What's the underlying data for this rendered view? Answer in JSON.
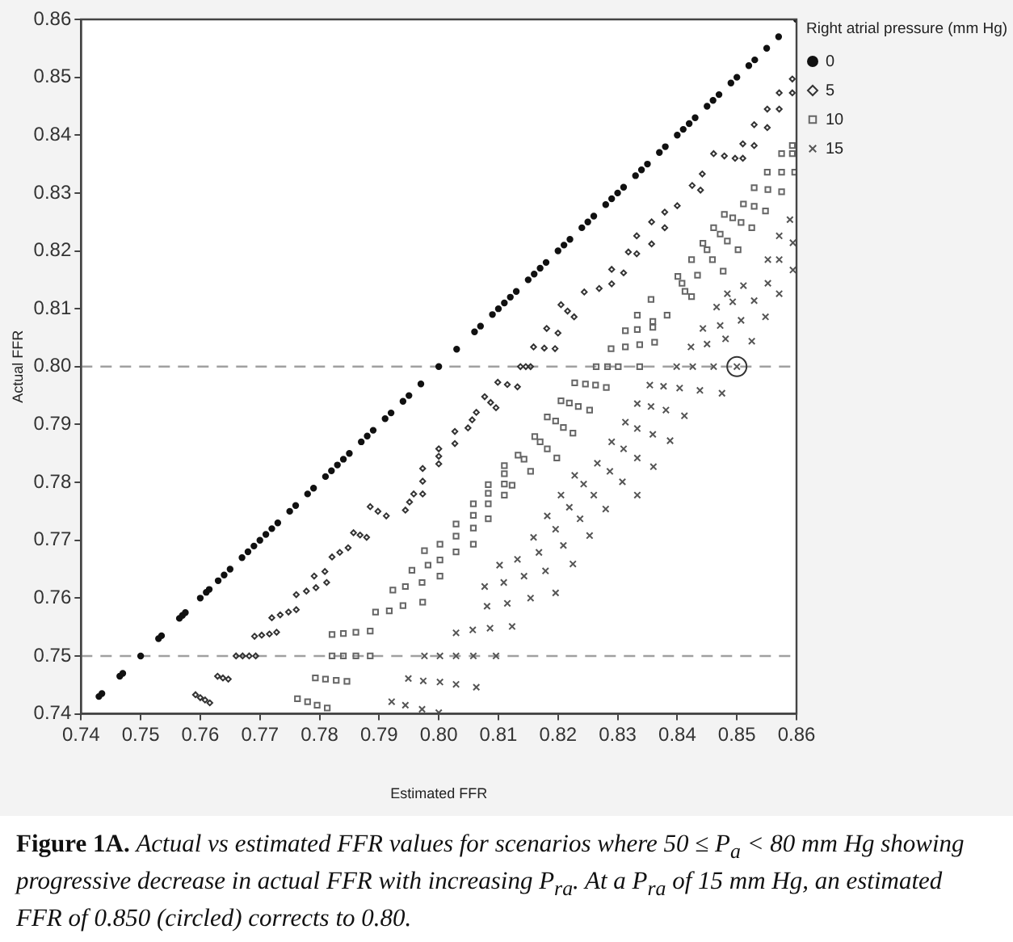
{
  "chart_data": {
    "type": "scatter",
    "xlabel": "Estimated FFR",
    "ylabel": "Actual FFR",
    "legend_title": "Right atrial pressure (mm Hg)",
    "legend": "right",
    "grid": false,
    "xlim": [
      0.74,
      0.86
    ],
    "xticks": [
      0.74,
      0.75,
      0.76,
      0.77,
      0.78,
      0.79,
      {
        "value": 0.8,
        "label": "0.80"
      },
      0.81,
      0.82,
      0.83,
      0.84,
      0.85,
      0.86
    ],
    "ylim": [
      0.74,
      0.86
    ],
    "yticks": [
      0.74,
      0.75,
      0.76,
      0.77,
      0.78,
      0.79,
      {
        "value": 0.8,
        "label": "0.80"
      },
      0.81,
      0.82,
      0.83,
      0.84,
      0.85,
      0.86
    ],
    "ref_lines": [
      {
        "axis": "y",
        "value": 0.8,
        "color": "#a0a0a0",
        "line_style": "dashed"
      },
      {
        "axis": "y",
        "value": 0.75,
        "color": "#a0a0a0",
        "line_style": "dashed"
      }
    ],
    "annotations": [
      "Figure 1A.",
      "Actual vs estimated FFR values for scenarios where 50 ≤ P$_{a}$ < 80 mm Hg showing progressive decrease in actual FFR with increasing P$_{ra}$. At a P$_{ra}$ of 15 mm Hg, an estimated FFR of 0.850 (circled) corrects to 0.80."
    ],
    "series": [
      {
        "name": "0",
        "color": "#111111",
        "marker": "circle",
        "x": [
          0.743,
          0.7435,
          0.7465,
          0.747,
          0.75,
          0.753,
          0.7535,
          0.7565,
          0.757,
          0.7575,
          0.76,
          0.761,
          0.7615,
          0.763,
          0.764,
          0.765,
          0.767,
          0.768,
          0.769,
          0.77,
          0.771,
          0.772,
          0.773,
          0.775,
          0.776,
          0.778,
          0.779,
          0.781,
          0.782,
          0.783,
          0.784,
          0.785,
          0.787,
          0.788,
          0.789,
          0.791,
          0.792,
          0.794,
          0.795,
          0.797,
          0.8,
          0.803,
          0.806,
          0.807,
          0.809,
          0.81,
          0.811,
          0.812,
          0.813,
          0.815,
          0.816,
          0.817,
          0.818,
          0.82,
          0.821,
          0.822,
          0.824,
          0.825,
          0.826,
          0.828,
          0.829,
          0.83,
          0.831,
          0.833,
          0.834,
          0.835,
          0.837,
          0.838,
          0.84,
          0.841,
          0.842,
          0.843,
          0.845,
          0.846,
          0.847,
          0.849,
          0.85,
          0.852,
          0.853,
          0.855,
          0.857,
          0.86
        ],
        "values": [
          0.743,
          0.7435,
          0.7465,
          0.747,
          0.75,
          0.753,
          0.7535,
          0.7565,
          0.757,
          0.7575,
          0.76,
          0.761,
          0.7615,
          0.763,
          0.764,
          0.765,
          0.767,
          0.768,
          0.769,
          0.77,
          0.771,
          0.772,
          0.773,
          0.775,
          0.776,
          0.778,
          0.779,
          0.781,
          0.782,
          0.783,
          0.784,
          0.785,
          0.787,
          0.788,
          0.789,
          0.791,
          0.792,
          0.794,
          0.795,
          0.797,
          0.8,
          0.803,
          0.806,
          0.807,
          0.809,
          0.81,
          0.811,
          0.812,
          0.813,
          0.815,
          0.816,
          0.817,
          0.818,
          0.82,
          0.821,
          0.822,
          0.824,
          0.825,
          0.826,
          0.828,
          0.829,
          0.83,
          0.831,
          0.833,
          0.834,
          0.835,
          0.837,
          0.838,
          0.84,
          0.841,
          0.842,
          0.843,
          0.845,
          0.846,
          0.847,
          0.849,
          0.85,
          0.852,
          0.853,
          0.855,
          0.857,
          0.86
        ]
      },
      {
        "name": "5",
        "color": "#333333",
        "marker": "diamond",
        "x": [
          0.7592,
          0.76,
          0.7608,
          0.7616,
          0.7629,
          0.7638,
          0.7647,
          0.766,
          0.7671,
          0.7682,
          0.7693,
          0.7691,
          0.7703,
          0.7716,
          0.7728,
          0.772,
          0.7734,
          0.7748,
          0.7761,
          0.7761,
          0.7778,
          0.7794,
          0.7812,
          0.7791,
          0.7809,
          0.7821,
          0.7834,
          0.7848,
          0.7857,
          0.7868,
          0.7879,
          0.7885,
          0.7898,
          0.7912,
          0.7944,
          0.7951,
          0.7958,
          0.7973,
          0.7973,
          0.7973,
          0.8,
          0.8,
          0.8,
          0.8027,
          0.8027,
          0.8049,
          0.8056,
          0.8063,
          0.8077,
          0.8087,
          0.8096,
          0.8099,
          0.8115,
          0.8132,
          0.8137,
          0.8146,
          0.8154,
          0.8159,
          0.8177,
          0.8195,
          0.8181,
          0.82,
          0.8205,
          0.8216,
          0.8227,
          0.8244,
          0.8269,
          0.829,
          0.829,
          0.831,
          0.8318,
          0.8332,
          0.8332,
          0.8357,
          0.8357,
          0.8379,
          0.8379,
          0.84,
          0.8425,
          0.8439,
          0.8442,
          0.8461,
          0.8479,
          0.8497,
          0.851,
          0.851,
          0.8529,
          0.8529,
          0.8551,
          0.8551,
          0.8571,
          0.8571,
          0.8593,
          0.8593
        ],
        "values": [
          0.7433,
          0.7428,
          0.7424,
          0.7419,
          0.7465,
          0.7462,
          0.746,
          0.75,
          0.75,
          0.75,
          0.75,
          0.7534,
          0.7536,
          0.7538,
          0.7541,
          0.7566,
          0.7571,
          0.7576,
          0.758,
          0.7606,
          0.7612,
          0.7618,
          0.7627,
          0.7638,
          0.7646,
          0.7671,
          0.7679,
          0.7687,
          0.7713,
          0.7709,
          0.7705,
          0.7758,
          0.775,
          0.7742,
          0.7752,
          0.7766,
          0.778,
          0.778,
          0.7802,
          0.7824,
          0.7832,
          0.7845,
          0.7858,
          0.7867,
          0.7888,
          0.7894,
          0.7908,
          0.7921,
          0.7948,
          0.7938,
          0.7929,
          0.7973,
          0.7969,
          0.7965,
          0.8,
          0.8,
          0.8,
          0.8034,
          0.8032,
          0.8031,
          0.8066,
          0.8058,
          0.8107,
          0.8096,
          0.8086,
          0.8129,
          0.8135,
          0.8143,
          0.8168,
          0.8162,
          0.8198,
          0.8195,
          0.8226,
          0.8212,
          0.825,
          0.824,
          0.8267,
          0.8278,
          0.8313,
          0.8305,
          0.8333,
          0.8368,
          0.8364,
          0.836,
          0.836,
          0.8385,
          0.8382,
          0.8418,
          0.8413,
          0.8445,
          0.8445,
          0.8473,
          0.8473,
          0.8497
        ]
      },
      {
        "name": "10",
        "color": "#666666",
        "marker": "square",
        "x": [
          0.7763,
          0.778,
          0.7796,
          0.7813,
          0.7793,
          0.781,
          0.7828,
          0.7846,
          0.7821,
          0.784,
          0.7861,
          0.7885,
          0.7821,
          0.784,
          0.7861,
          0.7885,
          0.7894,
          0.7917,
          0.794,
          0.7973,
          0.7923,
          0.7944,
          0.7972,
          0.8002,
          0.7955,
          0.7982,
          0.8002,
          0.7976,
          0.8002,
          0.8029,
          0.8029,
          0.8029,
          0.8058,
          0.8058,
          0.8058,
          0.8058,
          0.8083,
          0.8083,
          0.8083,
          0.8083,
          0.811,
          0.811,
          0.811,
          0.811,
          0.8123,
          0.8133,
          0.8143,
          0.8154,
          0.8161,
          0.817,
          0.8182,
          0.8198,
          0.8182,
          0.8196,
          0.8209,
          0.8225,
          0.8205,
          0.8219,
          0.8234,
          0.8253,
          0.8228,
          0.8246,
          0.8263,
          0.8281,
          0.8264,
          0.8283,
          0.8301,
          0.8337,
          0.8289,
          0.8313,
          0.8337,
          0.8362,
          0.8313,
          0.8333,
          0.8359,
          0.8333,
          0.8359,
          0.8356,
          0.8383,
          0.8401,
          0.8408,
          0.8413,
          0.8424,
          0.8424,
          0.8434,
          0.8443,
          0.845,
          0.8459,
          0.8477,
          0.8461,
          0.8472,
          0.8484,
          0.8502,
          0.8479,
          0.8493,
          0.8507,
          0.8525,
          0.8511,
          0.8529,
          0.8548,
          0.8529,
          0.8552,
          0.8575,
          0.8551,
          0.8575,
          0.8597,
          0.8575,
          0.8593,
          0.8593
        ],
        "values": [
          0.7426,
          0.7421,
          0.7415,
          0.741,
          0.7462,
          0.746,
          0.7458,
          0.7456,
          0.75,
          0.75,
          0.75,
          0.75,
          0.7537,
          0.7539,
          0.7541,
          0.7543,
          0.7576,
          0.7578,
          0.7587,
          0.7593,
          0.7614,
          0.762,
          0.7627,
          0.7638,
          0.7648,
          0.7657,
          0.7666,
          0.7682,
          0.7693,
          0.768,
          0.7707,
          0.7728,
          0.7693,
          0.7721,
          0.7743,
          0.7763,
          0.7737,
          0.7763,
          0.7781,
          0.7796,
          0.7778,
          0.7797,
          0.7815,
          0.7829,
          0.7795,
          0.7847,
          0.784,
          0.7819,
          0.7879,
          0.787,
          0.7858,
          0.7842,
          0.7913,
          0.7906,
          0.7895,
          0.7885,
          0.7941,
          0.7937,
          0.7931,
          0.7925,
          0.7972,
          0.797,
          0.7968,
          0.7964,
          0.8,
          0.8,
          0.8,
          0.8,
          0.8031,
          0.8034,
          0.8038,
          0.8042,
          0.8062,
          0.8064,
          0.8068,
          0.8089,
          0.8078,
          0.8116,
          0.8089,
          0.8156,
          0.8144,
          0.813,
          0.8121,
          0.8185,
          0.8158,
          0.8213,
          0.8202,
          0.8185,
          0.8165,
          0.824,
          0.8229,
          0.8217,
          0.8202,
          0.8263,
          0.8257,
          0.8249,
          0.824,
          0.8281,
          0.8277,
          0.8269,
          0.8309,
          0.8306,
          0.8302,
          0.8336,
          0.8336,
          0.8336,
          0.8368,
          0.8368,
          0.8382
        ]
      },
      {
        "name": "15",
        "color": "#555555",
        "marker": "cross",
        "x": [
          0.7921,
          0.7944,
          0.7972,
          0.8,
          0.7949,
          0.7974,
          0.8002,
          0.8029,
          0.8063,
          0.7976,
          0.8002,
          0.8029,
          0.8058,
          0.8096,
          0.8029,
          0.8057,
          0.8086,
          0.8123,
          0.8081,
          0.8115,
          0.8154,
          0.8196,
          0.8077,
          0.8109,
          0.8143,
          0.8179,
          0.8225,
          0.8102,
          0.8132,
          0.8168,
          0.8159,
          0.8196,
          0.8209,
          0.8182,
          0.8219,
          0.8237,
          0.8253,
          0.8205,
          0.8228,
          0.8243,
          0.826,
          0.828,
          0.8266,
          0.8287,
          0.8308,
          0.8333,
          0.829,
          0.831,
          0.8333,
          0.836,
          0.8313,
          0.8333,
          0.8359,
          0.8388,
          0.8333,
          0.8356,
          0.8381,
          0.8412,
          0.8354,
          0.8377,
          0.8404,
          0.8438,
          0.8475,
          0.8399,
          0.8426,
          0.8461,
          0.85,
          0.8423,
          0.845,
          0.8481,
          0.8525,
          0.8443,
          0.8472,
          0.8507,
          0.8548,
          0.8466,
          0.8493,
          0.8529,
          0.8571,
          0.8484,
          0.8511,
          0.8552,
          0.8594,
          0.8552,
          0.8571,
          0.8571,
          0.8594,
          0.8589
        ],
        "values": [
          0.7421,
          0.7415,
          0.7408,
          0.7402,
          0.7461,
          0.7457,
          0.7455,
          0.7451,
          0.7446,
          0.75,
          0.75,
          0.75,
          0.75,
          0.75,
          0.754,
          0.7545,
          0.7548,
          0.7551,
          0.7586,
          0.7591,
          0.76,
          0.7609,
          0.762,
          0.7627,
          0.7638,
          0.7647,
          0.7659,
          0.7657,
          0.7667,
          0.7679,
          0.7705,
          0.7719,
          0.7691,
          0.7742,
          0.7757,
          0.7737,
          0.7708,
          0.7778,
          0.7812,
          0.7797,
          0.7778,
          0.7754,
          0.7833,
          0.7819,
          0.7801,
          0.7778,
          0.787,
          0.7858,
          0.7842,
          0.7827,
          0.7904,
          0.7893,
          0.7883,
          0.7872,
          0.7936,
          0.7931,
          0.7925,
          0.7915,
          0.7968,
          0.7966,
          0.7963,
          0.7959,
          0.7954,
          0.8,
          0.8,
          0.8,
          0.8,
          0.8034,
          0.8039,
          0.8048,
          0.8044,
          0.8066,
          0.8071,
          0.808,
          0.8086,
          0.8103,
          0.8112,
          0.8114,
          0.8126,
          0.8126,
          0.814,
          0.8144,
          0.8167,
          0.8185,
          0.8185,
          0.8226,
          0.8214,
          0.8254
        ]
      },
      {
        "color": "#333333",
        "marker": "circle",
        "x": [
          0.85
        ],
        "values": [
          0.8
        ]
      }
    ]
  }
}
